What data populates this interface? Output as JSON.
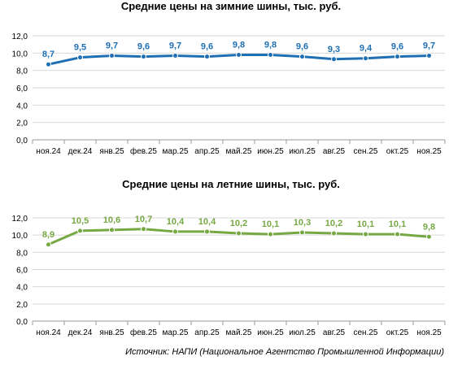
{
  "chart_data": [
    {
      "type": "line",
      "title": "Средние цены на зимние шины, тыс. руб.",
      "categories": [
        "ноя.24",
        "дек.24",
        "янв.25",
        "фев.25",
        "мар.25",
        "апр.25",
        "май.25",
        "июн.25",
        "июл.25",
        "авг.25",
        "сен.25",
        "окт.25",
        "ноя.25"
      ],
      "values": [
        8.7,
        9.5,
        9.7,
        9.6,
        9.7,
        9.6,
        9.8,
        9.8,
        9.6,
        9.3,
        9.4,
        9.6,
        9.7
      ],
      "value_labels": [
        "8,7",
        "9,5",
        "9,7",
        "9,6",
        "9,7",
        "9,6",
        "9,8",
        "9,8",
        "9,6",
        "9,3",
        "9,4",
        "9,6",
        "9,7"
      ],
      "ylim": [
        0,
        12
      ],
      "yticks": [
        "0,0",
        "2,0",
        "4,0",
        "6,0",
        "8,0",
        "10,0",
        "12,0"
      ],
      "grid": true,
      "legend": "none",
      "color": "#1F6FB5"
    },
    {
      "type": "line",
      "title": "Средние цены на летние шины, тыс. руб.",
      "categories": [
        "ноя.24",
        "дек.24",
        "янв.25",
        "фев.25",
        "мар.25",
        "апр.25",
        "май.25",
        "июн.25",
        "июл.25",
        "авг.25",
        "сен.25",
        "окт.25",
        "ноя.25"
      ],
      "values": [
        8.9,
        10.5,
        10.6,
        10.7,
        10.4,
        10.4,
        10.2,
        10.1,
        10.3,
        10.2,
        10.1,
        10.1,
        9.8
      ],
      "value_labels": [
        "8,9",
        "10,5",
        "10,6",
        "10,7",
        "10,4",
        "10,4",
        "10,2",
        "10,1",
        "10,3",
        "10,2",
        "10,1",
        "10,1",
        "9,8"
      ],
      "ylim": [
        0,
        12
      ],
      "yticks": [
        "0,0",
        "2,0",
        "4,0",
        "6,0",
        "8,0",
        "10,0",
        "12,0"
      ],
      "grid": true,
      "legend": "none",
      "color": "#76A844"
    }
  ],
  "source": "Источник: НАПИ (Национальное Агентство Промышленной Информации)"
}
